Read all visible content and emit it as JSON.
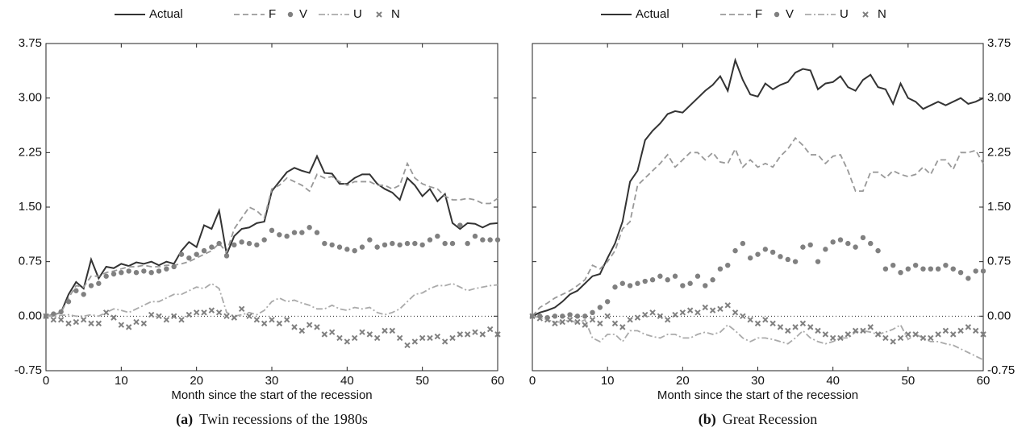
{
  "chart_data": [
    {
      "type": "line",
      "xlabel": "Month since the start of the recession",
      "caption_label": "(a)",
      "caption": "Twin recessions of the 1980s",
      "yaxis_side": "left",
      "zero_line": true,
      "legend": "top",
      "xlim": [
        0,
        60
      ],
      "xticks": [
        0,
        10,
        20,
        30,
        40,
        50,
        60
      ],
      "ylim": [
        -0.75,
        3.75
      ],
      "yticks": [
        -0.75,
        {
          "value": 0,
          "label": "0.00"
        },
        0.75,
        {
          "value": 1.5,
          "label": "1.50"
        },
        2.25,
        {
          "value": 3,
          "label": "3.00"
        },
        3.75
      ],
      "x": [
        0,
        1,
        2,
        3,
        4,
        5,
        6,
        7,
        8,
        9,
        10,
        11,
        12,
        13,
        14,
        15,
        16,
        17,
        18,
        19,
        20,
        21,
        22,
        23,
        24,
        25,
        26,
        27,
        28,
        29,
        30,
        31,
        32,
        33,
        34,
        35,
        36,
        37,
        38,
        39,
        40,
        41,
        42,
        43,
        44,
        45,
        46,
        47,
        48,
        49,
        50,
        51,
        52,
        53,
        54,
        55,
        56,
        57,
        58,
        59,
        60
      ],
      "series": [
        {
          "name": "Actual",
          "color": "#333333",
          "style": "solid",
          "values": [
            0,
            0.02,
            0.05,
            0.3,
            0.47,
            0.38,
            0.78,
            0.52,
            0.68,
            0.66,
            0.72,
            0.69,
            0.74,
            0.72,
            0.75,
            0.7,
            0.75,
            0.72,
            0.9,
            1.02,
            0.95,
            1.25,
            1.2,
            1.45,
            0.85,
            1.1,
            1.2,
            1.22,
            1.28,
            1.3,
            1.72,
            1.85,
            1.98,
            2.04,
            2.0,
            1.97,
            2.2,
            1.97,
            1.96,
            1.82,
            1.82,
            1.9,
            1.95,
            1.95,
            1.82,
            1.75,
            1.7,
            1.6,
            1.9,
            1.8,
            1.65,
            1.75,
            1.58,
            1.68,
            1.28,
            1.2,
            1.28,
            1.27,
            1.22,
            1.27,
            1.28
          ]
        },
        {
          "name": "F",
          "color": "#999999",
          "style": "dashed",
          "values": [
            0,
            0.02,
            0.05,
            0.25,
            0.42,
            0.4,
            0.55,
            0.55,
            0.6,
            0.62,
            0.65,
            0.68,
            0.68,
            0.7,
            0.68,
            0.68,
            0.7,
            0.7,
            0.72,
            0.75,
            0.8,
            0.85,
            0.9,
            1.0,
            0.88,
            1.2,
            1.35,
            1.5,
            1.45,
            1.35,
            1.75,
            1.8,
            1.9,
            1.85,
            1.8,
            1.72,
            1.95,
            1.9,
            1.92,
            1.85,
            1.8,
            1.85,
            1.85,
            1.85,
            1.8,
            1.8,
            1.75,
            1.8,
            2.1,
            1.9,
            1.82,
            1.78,
            1.75,
            1.65,
            1.6,
            1.6,
            1.62,
            1.6,
            1.55,
            1.55,
            1.62
          ]
        },
        {
          "name": "V",
          "color": "#808080",
          "style": "dots",
          "values": [
            0,
            0.03,
            0.06,
            0.2,
            0.35,
            0.3,
            0.42,
            0.45,
            0.55,
            0.58,
            0.6,
            0.62,
            0.6,
            0.62,
            0.6,
            0.62,
            0.65,
            0.68,
            0.85,
            0.8,
            0.85,
            0.9,
            0.95,
            1.0,
            0.83,
            0.98,
            1.02,
            1.0,
            0.98,
            1.05,
            1.18,
            1.12,
            1.1,
            1.15,
            1.15,
            1.22,
            1.15,
            1.0,
            0.98,
            0.95,
            0.92,
            0.9,
            0.95,
            1.05,
            0.95,
            0.98,
            1.0,
            0.98,
            1.0,
            1.0,
            0.98,
            1.05,
            1.1,
            1.0,
            1.0,
            1.25,
            1.0,
            1.1,
            1.05,
            1.05,
            1.05
          ]
        },
        {
          "name": "U",
          "color": "#aaaaaa",
          "style": "dashdot",
          "values": [
            0,
            0.0,
            0.01,
            0.02,
            0.0,
            0.0,
            0.02,
            0.0,
            0.05,
            0.1,
            0.08,
            0.05,
            0.1,
            0.15,
            0.2,
            0.2,
            0.25,
            0.3,
            0.3,
            0.35,
            0.4,
            0.38,
            0.45,
            0.38,
            0.05,
            0.0,
            0.02,
            0.05,
            0.02,
            0.08,
            0.2,
            0.25,
            0.2,
            0.22,
            0.18,
            0.15,
            0.1,
            0.1,
            0.15,
            0.1,
            0.08,
            0.12,
            0.1,
            0.12,
            0.05,
            0.02,
            0.05,
            0.1,
            0.2,
            0.3,
            0.32,
            0.38,
            0.42,
            0.42,
            0.45,
            0.4,
            0.35,
            0.38,
            0.4,
            0.42,
            0.43
          ]
        },
        {
          "name": "N",
          "color": "#808080",
          "style": "crosses",
          "values": [
            0,
            -0.05,
            -0.05,
            -0.1,
            -0.08,
            -0.05,
            -0.1,
            -0.1,
            0.05,
            -0.02,
            -0.12,
            -0.15,
            -0.08,
            -0.1,
            0.02,
            0.0,
            -0.05,
            0.0,
            -0.05,
            0.02,
            0.05,
            0.05,
            0.08,
            0.05,
            0.0,
            -0.02,
            0.1,
            0.0,
            -0.05,
            -0.1,
            -0.05,
            -0.1,
            -0.05,
            -0.15,
            -0.2,
            -0.12,
            -0.15,
            -0.25,
            -0.22,
            -0.3,
            -0.35,
            -0.3,
            -0.22,
            -0.25,
            -0.3,
            -0.2,
            -0.2,
            -0.3,
            -0.4,
            -0.35,
            -0.3,
            -0.3,
            -0.28,
            -0.35,
            -0.3,
            -0.25,
            -0.25,
            -0.22,
            -0.25,
            -0.18,
            -0.25
          ]
        }
      ]
    },
    {
      "type": "line",
      "xlabel": "Month since the start of the recession",
      "caption_label": "(b)",
      "caption": "Great Recession",
      "yaxis_side": "right",
      "zero_line": true,
      "legend": "top",
      "xlim": [
        0,
        60
      ],
      "xticks": [
        0,
        10,
        20,
        30,
        40,
        50,
        60
      ],
      "ylim": [
        -0.75,
        3.75
      ],
      "yticks": [
        -0.75,
        {
          "value": 0,
          "label": "0.00"
        },
        0.75,
        {
          "value": 1.5,
          "label": "1.50"
        },
        2.25,
        {
          "value": 3,
          "label": "3.00"
        },
        3.75
      ],
      "x": [
        0,
        1,
        2,
        3,
        4,
        5,
        6,
        7,
        8,
        9,
        10,
        11,
        12,
        13,
        14,
        15,
        16,
        17,
        18,
        19,
        20,
        21,
        22,
        23,
        24,
        25,
        26,
        27,
        28,
        29,
        30,
        31,
        32,
        33,
        34,
        35,
        36,
        37,
        38,
        39,
        40,
        41,
        42,
        43,
        44,
        45,
        46,
        47,
        48,
        49,
        50,
        51,
        52,
        53,
        54,
        55,
        56,
        57,
        58,
        59,
        60
      ],
      "series": [
        {
          "name": "Actual",
          "color": "#333333",
          "style": "solid",
          "values": [
            0,
            0.05,
            0.08,
            0.12,
            0.2,
            0.3,
            0.35,
            0.45,
            0.55,
            0.58,
            0.8,
            1.0,
            1.3,
            1.85,
            2.0,
            2.42,
            2.55,
            2.65,
            2.78,
            2.82,
            2.8,
            2.9,
            3.0,
            3.1,
            3.18,
            3.3,
            3.1,
            3.52,
            3.25,
            3.05,
            3.02,
            3.2,
            3.12,
            3.18,
            3.22,
            3.35,
            3.4,
            3.38,
            3.12,
            3.2,
            3.22,
            3.3,
            3.15,
            3.1,
            3.25,
            3.32,
            3.15,
            3.12,
            2.92,
            3.2,
            3.0,
            2.95,
            2.85,
            2.9,
            2.95,
            2.9,
            2.95,
            3.0,
            2.92,
            2.95,
            3.0
          ]
        },
        {
          "name": "F",
          "color": "#999999",
          "style": "dashed",
          "values": [
            0,
            0.12,
            0.18,
            0.25,
            0.3,
            0.35,
            0.42,
            0.5,
            0.7,
            0.65,
            0.75,
            0.9,
            1.2,
            1.3,
            1.8,
            1.9,
            2.0,
            2.1,
            2.22,
            2.05,
            2.15,
            2.25,
            2.25,
            2.15,
            2.25,
            2.12,
            2.1,
            2.3,
            2.05,
            2.15,
            2.05,
            2.1,
            2.05,
            2.2,
            2.3,
            2.45,
            2.35,
            2.22,
            2.22,
            2.1,
            2.2,
            2.22,
            2.0,
            1.72,
            1.72,
            1.98,
            1.98,
            1.9,
            2.0,
            1.95,
            1.92,
            1.95,
            2.05,
            1.95,
            2.15,
            2.15,
            2.02,
            2.25,
            2.25,
            2.28,
            2.1
          ]
        },
        {
          "name": "V",
          "color": "#808080",
          "style": "dots",
          "values": [
            0,
            0.0,
            -0.02,
            0.0,
            0.0,
            0.02,
            0.0,
            0.0,
            0.05,
            0.12,
            0.2,
            0.4,
            0.45,
            0.42,
            0.45,
            0.48,
            0.5,
            0.55,
            0.5,
            0.55,
            0.42,
            0.45,
            0.55,
            0.42,
            0.5,
            0.65,
            0.7,
            0.9,
            1.0,
            0.8,
            0.85,
            0.92,
            0.88,
            0.82,
            0.78,
            0.75,
            0.95,
            0.98,
            0.75,
            0.92,
            1.02,
            1.05,
            1.0,
            0.95,
            1.08,
            1.0,
            0.9,
            0.65,
            0.7,
            0.6,
            0.65,
            0.7,
            0.65,
            0.65,
            0.65,
            0.7,
            0.65,
            0.6,
            0.52,
            0.62,
            0.62
          ]
        },
        {
          "name": "U",
          "color": "#aaaaaa",
          "style": "dashdot",
          "values": [
            0,
            -0.02,
            -0.05,
            -0.08,
            -0.08,
            -0.05,
            -0.1,
            -0.05,
            -0.3,
            -0.35,
            -0.25,
            -0.25,
            -0.35,
            -0.2,
            -0.2,
            -0.25,
            -0.28,
            -0.3,
            -0.25,
            -0.25,
            -0.3,
            -0.3,
            -0.25,
            -0.22,
            -0.25,
            -0.22,
            -0.12,
            -0.2,
            -0.3,
            -0.35,
            -0.3,
            -0.3,
            -0.32,
            -0.35,
            -0.38,
            -0.3,
            -0.2,
            -0.3,
            -0.35,
            -0.38,
            -0.35,
            -0.3,
            -0.3,
            -0.22,
            -0.2,
            -0.22,
            -0.25,
            -0.22,
            -0.18,
            -0.12,
            -0.32,
            -0.25,
            -0.3,
            -0.35,
            -0.35,
            -0.38,
            -0.4,
            -0.45,
            -0.5,
            -0.55,
            -0.6
          ]
        },
        {
          "name": "N",
          "color": "#808080",
          "style": "crosses",
          "values": [
            0,
            -0.03,
            -0.05,
            -0.1,
            -0.08,
            -0.05,
            -0.08,
            -0.12,
            -0.05,
            -0.1,
            0.0,
            -0.1,
            -0.15,
            -0.05,
            -0.02,
            0.02,
            0.05,
            0.0,
            -0.05,
            0.02,
            0.05,
            0.08,
            0.05,
            0.12,
            0.08,
            0.1,
            0.15,
            0.05,
            0.0,
            -0.05,
            -0.1,
            -0.05,
            -0.1,
            -0.15,
            -0.2,
            -0.15,
            -0.1,
            -0.15,
            -0.2,
            -0.25,
            -0.3,
            -0.3,
            -0.25,
            -0.2,
            -0.2,
            -0.15,
            -0.25,
            -0.3,
            -0.35,
            -0.3,
            -0.25,
            -0.25,
            -0.3,
            -0.3,
            -0.25,
            -0.2,
            -0.25,
            -0.2,
            -0.15,
            -0.2,
            -0.25
          ]
        }
      ]
    }
  ]
}
